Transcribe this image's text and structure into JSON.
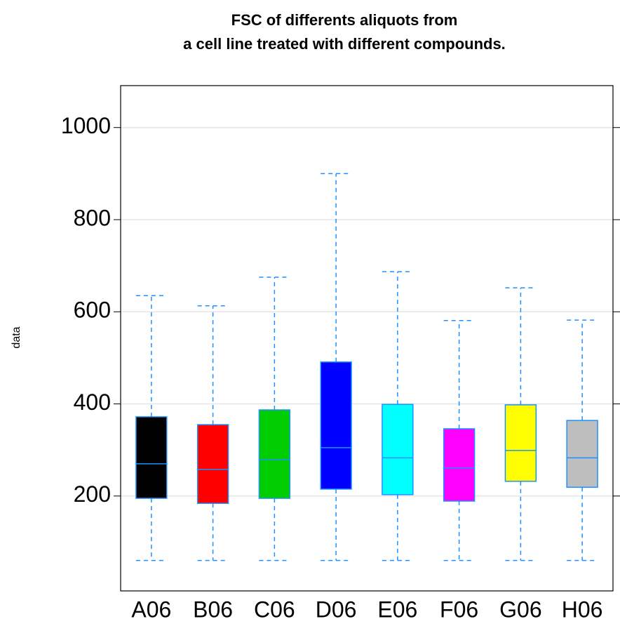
{
  "chart_data": {
    "type": "box",
    "title": [
      "FSC of differents aliquots from",
      "a cell line treated with different compounds."
    ],
    "ylabel": "data",
    "categories": [
      "A06",
      "B06",
      "C06",
      "D06",
      "E06",
      "F06",
      "G06",
      "H06"
    ],
    "colors": [
      "#000000",
      "#ff0000",
      "#00cd00",
      "#0000ff",
      "#00ffff",
      "#ff00ff",
      "#ffff00",
      "#bebebe"
    ],
    "min": [
      60,
      60,
      60,
      60,
      60,
      60,
      60,
      60
    ],
    "q1": [
      195,
      184,
      195,
      215,
      203,
      189,
      232,
      219
    ],
    "median": [
      270,
      258,
      279,
      305,
      283,
      261,
      299,
      283
    ],
    "q3": [
      372,
      355,
      387,
      491,
      399,
      346,
      398,
      364
    ],
    "max": [
      635,
      613,
      675,
      900,
      687,
      581,
      652,
      582
    ],
    "box_border_color": "#1e90ff",
    "ylim": [
      -6,
      1091
    ],
    "yticks": [
      200,
      400,
      600,
      800,
      1000
    ],
    "grid": true
  }
}
